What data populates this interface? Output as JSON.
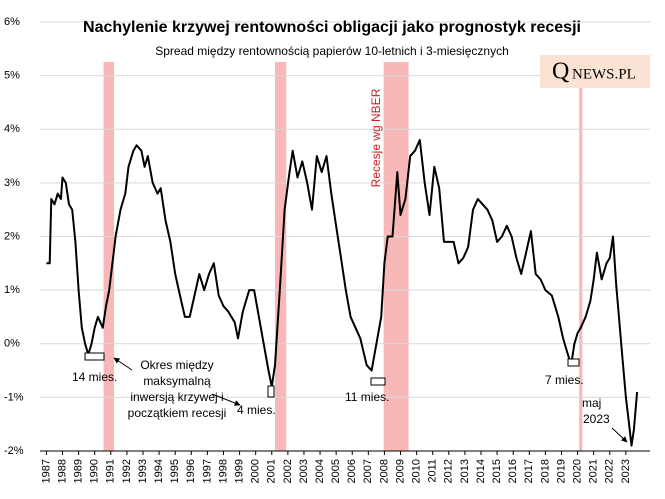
{
  "chart_data": {
    "type": "line",
    "title": "Nachylenie krzywej rentowności obligacji jako prognostyk recesji",
    "subtitle": "Spread między rentownością papierów 10-letnich i 3-miesięcznych",
    "logo_initial": "Q",
    "logo_rest": "NEWS.PL",
    "shaded_label": "Recesje wg NBER",
    "shaded_color": "#f8b8b8",
    "shaded_periods": [
      {
        "start": 1990.55,
        "end": 1991.2
      },
      {
        "start": 2001.2,
        "end": 2001.9
      },
      {
        "start": 2007.95,
        "end": 2009.5
      },
      {
        "start": 2020.1,
        "end": 2020.3
      }
    ],
    "annotations": [
      {
        "text": "14 mies."
      },
      {
        "lines": [
          "Okres między",
          "maksymalną",
          "inwersją krzywej i",
          "początkiem recesji"
        ]
      },
      {
        "text": "4 mies."
      },
      {
        "text": "11 mies."
      },
      {
        "text": "7 mies."
      },
      {
        "lines": [
          "maj",
          "2023"
        ]
      }
    ],
    "grid": true,
    "xlim": [
      1986.6,
      2024.5
    ],
    "ylim": [
      -2,
      6
    ],
    "xticks": [
      1987,
      1988,
      1989,
      1990,
      1991,
      1992,
      1993,
      1994,
      1995,
      1996,
      1997,
      1998,
      1999,
      2000,
      2001,
      2002,
      2003,
      2004,
      2005,
      2006,
      2007,
      2008,
      2009,
      2010,
      2011,
      2012,
      2013,
      2014,
      2015,
      2016,
      2017,
      2018,
      2019,
      2020,
      2021,
      2022,
      2023
    ],
    "yticks": [
      {
        "value": -2,
        "label": "-2%"
      },
      {
        "value": -1,
        "label": "-1%"
      },
      {
        "value": 0,
        "label": "0%"
      },
      {
        "value": 1,
        "label": "1%"
      },
      {
        "value": 2,
        "label": "2%"
      },
      {
        "value": 3,
        "label": "3%"
      },
      {
        "value": 4,
        "label": "4%"
      },
      {
        "value": 5,
        "label": "5%"
      },
      {
        "value": 6,
        "label": "6%"
      }
    ],
    "series": [
      {
        "color": "#000000",
        "x": [
          1987.0,
          1987.2,
          1987.3,
          1987.5,
          1987.7,
          1987.9,
          1988.0,
          1988.2,
          1988.4,
          1988.6,
          1988.8,
          1989.0,
          1989.2,
          1989.4,
          1989.6,
          1989.8,
          1990.0,
          1990.2,
          1990.5,
          1990.7,
          1990.9,
          1991.1,
          1991.3,
          1991.6,
          1991.9,
          1992.1,
          1992.4,
          1992.6,
          1992.9,
          1993.1,
          1993.3,
          1993.6,
          1993.9,
          1994.1,
          1994.4,
          1994.7,
          1995.0,
          1995.3,
          1995.6,
          1995.9,
          1996.2,
          1996.5,
          1996.8,
          1997.1,
          1997.4,
          1997.7,
          1998.0,
          1998.3,
          1998.7,
          1998.9,
          1999.2,
          1999.6,
          1999.9,
          2000.2,
          2000.5,
          2000.8,
          2001.0,
          2001.2,
          2001.5,
          2001.8,
          2002.1,
          2002.3,
          2002.6,
          2002.9,
          2003.2,
          2003.5,
          2003.8,
          2004.1,
          2004.4,
          2004.7,
          2005.0,
          2005.3,
          2005.6,
          2005.9,
          2006.2,
          2006.5,
          2006.9,
          2007.2,
          2007.5,
          2007.8,
          2008.0,
          2008.2,
          2008.5,
          2008.8,
          2009.0,
          2009.3,
          2009.6,
          2009.9,
          2010.2,
          2010.5,
          2010.8,
          2011.1,
          2011.4,
          2011.7,
          2012.0,
          2012.3,
          2012.6,
          2012.9,
          2013.2,
          2013.5,
          2013.8,
          2014.1,
          2014.4,
          2014.7,
          2015.0,
          2015.3,
          2015.6,
          2015.9,
          2016.2,
          2016.5,
          2016.8,
          2017.1,
          2017.4,
          2017.7,
          2018.0,
          2018.4,
          2018.8,
          2019.1,
          2019.4,
          2019.6,
          2019.8,
          2020.0,
          2020.2,
          2020.5,
          2020.8,
          2021.0,
          2021.2,
          2021.5,
          2021.8,
          2022.0,
          2022.2,
          2022.4,
          2022.6,
          2022.8,
          2023.0,
          2023.2,
          2023.35,
          2023.5,
          2023.7
        ],
        "values": [
          1.5,
          1.5,
          2.7,
          2.6,
          2.8,
          2.7,
          3.1,
          3.0,
          2.6,
          2.5,
          1.9,
          1.0,
          0.3,
          0.0,
          -0.2,
          0.0,
          0.3,
          0.5,
          0.3,
          0.7,
          1.0,
          1.5,
          2.0,
          2.5,
          2.8,
          3.3,
          3.6,
          3.7,
          3.6,
          3.3,
          3.5,
          3.0,
          2.8,
          2.9,
          2.3,
          1.9,
          1.3,
          0.9,
          0.5,
          0.5,
          0.9,
          1.3,
          1.0,
          1.3,
          1.5,
          0.9,
          0.7,
          0.6,
          0.4,
          0.1,
          0.6,
          1.0,
          1.0,
          0.5,
          0.0,
          -0.5,
          -0.8,
          -0.4,
          1.0,
          2.5,
          3.2,
          3.6,
          3.1,
          3.4,
          3.0,
          2.5,
          3.5,
          3.2,
          3.5,
          2.8,
          2.2,
          1.6,
          1.0,
          0.5,
          0.3,
          0.1,
          -0.4,
          -0.5,
          0.0,
          0.5,
          1.5,
          2.0,
          2.0,
          3.2,
          2.4,
          2.7,
          3.5,
          3.6,
          3.8,
          3.0,
          2.4,
          3.3,
          2.9,
          1.9,
          1.9,
          1.9,
          1.5,
          1.6,
          1.8,
          2.5,
          2.7,
          2.6,
          2.5,
          2.3,
          1.9,
          2.0,
          2.2,
          2.0,
          1.6,
          1.3,
          1.7,
          2.1,
          1.3,
          1.2,
          1.0,
          0.9,
          0.5,
          0.1,
          -0.2,
          -0.4,
          0.0,
          0.2,
          0.3,
          0.5,
          0.8,
          1.2,
          1.7,
          1.2,
          1.5,
          1.6,
          2.0,
          1.1,
          0.4,
          -0.3,
          -1.0,
          -1.5,
          -1.9,
          -1.6,
          -0.9
        ]
      }
    ]
  }
}
